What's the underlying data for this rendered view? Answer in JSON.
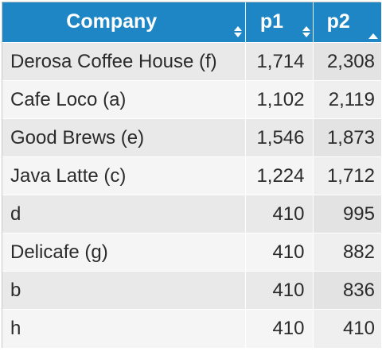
{
  "table": {
    "columns": [
      {
        "key": "company",
        "label": "Company",
        "sort": "both"
      },
      {
        "key": "p1",
        "label": "p1",
        "sort": "both"
      },
      {
        "key": "p2",
        "label": "p2",
        "sort": "asc"
      }
    ],
    "rows": [
      {
        "company": "Derosa Coffee House (f)",
        "p1": "1,714",
        "p2": "2,308"
      },
      {
        "company": "Cafe Loco (a)",
        "p1": "1,102",
        "p2": "2,119"
      },
      {
        "company": "Good Brews (e)",
        "p1": "1,546",
        "p2": "1,873"
      },
      {
        "company": "Java Latte (c)",
        "p1": "1,224",
        "p2": "1,712"
      },
      {
        "company": "d",
        "p1": "410",
        "p2": "995"
      },
      {
        "company": "Delicafe (g)",
        "p1": "410",
        "p2": "882"
      },
      {
        "company": "b",
        "p1": "410",
        "p2": "836"
      },
      {
        "company": "h",
        "p1": "410",
        "p2": "410"
      }
    ]
  },
  "colors": {
    "header_bg": "#1f86c6",
    "header_text": "#ffffff",
    "row_odd": "#e9e9e9",
    "row_even": "#f5f5f5"
  },
  "icons": {
    "unsorted": "sort-both-icon",
    "ascending": "sort-ascending-icon"
  }
}
